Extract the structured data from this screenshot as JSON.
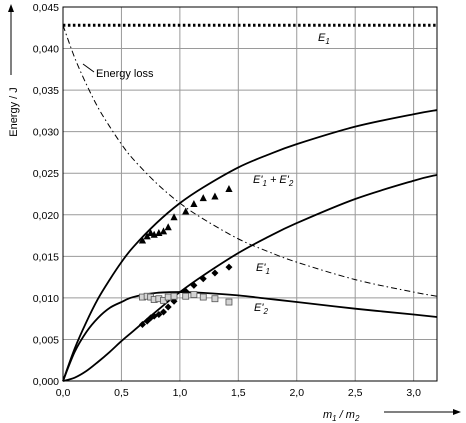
{
  "chart_data": {
    "type": "line",
    "xlabel_parts": {
      "m": "m",
      "sub1": "1",
      "slash": " / ",
      "sub2": "2"
    },
    "ylabel": "Energy / J",
    "xlim": [
      0,
      3.2
    ],
    "ylim": [
      0,
      0.045
    ],
    "grid": true,
    "x_ticks": [
      "0,0",
      "0,5",
      "1,0",
      "1,5",
      "2,0",
      "2,5",
      "3,0"
    ],
    "x_tick_values": [
      0,
      0.5,
      1,
      1.5,
      2,
      2.5,
      3
    ],
    "y_ticks": [
      "0,000",
      "0,005",
      "0,010",
      "0,015",
      "0,020",
      "0,025",
      "0,030",
      "0,035",
      "0,040",
      "0,045"
    ],
    "y_tick_values": [
      0,
      0.005,
      0.01,
      0.015,
      0.02,
      0.025,
      0.03,
      0.035,
      0.04,
      0.045
    ],
    "series": [
      {
        "name": "E1",
        "label_main": "E",
        "label_sub": "1",
        "style": "dotted",
        "x": [
          0,
          3.2
        ],
        "y": [
          0.0428,
          0.0428
        ]
      },
      {
        "name": "Energy loss",
        "label_main": "Energy loss",
        "style": "dash-dot",
        "x": [
          0,
          0.1,
          0.2,
          0.3,
          0.4,
          0.5,
          0.6,
          0.8,
          1.0,
          1.2,
          1.5,
          1.75,
          2.0,
          2.5,
          3.0,
          3.2
        ],
        "y": [
          0.0428,
          0.0389,
          0.0357,
          0.0329,
          0.0306,
          0.0285,
          0.0267,
          0.0238,
          0.0214,
          0.0195,
          0.0171,
          0.0156,
          0.0143,
          0.0122,
          0.0107,
          0.0102
        ]
      },
      {
        "name": "E'1 + E'2",
        "label_main": "E'",
        "label_sub": "1",
        "label_mid": " + E'",
        "label_sub2": "2",
        "style": "solid",
        "x": [
          0,
          0.1,
          0.2,
          0.3,
          0.4,
          0.5,
          0.6,
          0.8,
          1.0,
          1.2,
          1.5,
          1.75,
          2.0,
          2.5,
          3.0,
          3.2
        ],
        "y": [
          0,
          0.0039,
          0.0071,
          0.0099,
          0.0122,
          0.0143,
          0.0161,
          0.019,
          0.0214,
          0.0233,
          0.0257,
          0.0272,
          0.0285,
          0.0306,
          0.0321,
          0.0326
        ]
      },
      {
        "name": "E'1",
        "label_main": "E'",
        "label_sub": "1",
        "style": "solid",
        "x": [
          0,
          0.1,
          0.2,
          0.3,
          0.4,
          0.5,
          0.6,
          0.8,
          1.0,
          1.2,
          1.5,
          1.75,
          2.0,
          2.5,
          3.0,
          3.2
        ],
        "y": [
          0,
          0.0004,
          0.0012,
          0.0023,
          0.0035,
          0.0048,
          0.006,
          0.0084,
          0.0107,
          0.0127,
          0.0154,
          0.0173,
          0.019,
          0.0219,
          0.0241,
          0.0248
        ]
      },
      {
        "name": "E'2",
        "label_main": "E'",
        "label_sub": "2",
        "style": "solid",
        "x": [
          0,
          0.1,
          0.2,
          0.3,
          0.4,
          0.5,
          0.6,
          0.8,
          1.0,
          1.2,
          1.5,
          1.75,
          2.0,
          2.5,
          3.0,
          3.2
        ],
        "y": [
          0,
          0.0035,
          0.0059,
          0.0076,
          0.0088,
          0.0095,
          0.0101,
          0.0106,
          0.0107,
          0.0106,
          0.0103,
          0.0099,
          0.0095,
          0.0087,
          0.008,
          0.0077
        ]
      }
    ],
    "measurements": [
      {
        "name": "E'1 + E'2 measured",
        "marker": "triangle",
        "x": [
          0.68,
          0.72,
          0.75,
          0.78,
          0.82,
          0.86,
          0.9,
          0.95,
          1.05,
          1.12,
          1.2,
          1.3,
          1.42
        ],
        "y": [
          0.0169,
          0.0174,
          0.0178,
          0.0176,
          0.0178,
          0.018,
          0.0185,
          0.0197,
          0.0204,
          0.0213,
          0.022,
          0.0222,
          0.0231
        ]
      },
      {
        "name": "E'1 measured",
        "marker": "diamond",
        "x": [
          0.68,
          0.72,
          0.75,
          0.78,
          0.82,
          0.86,
          0.9,
          0.95,
          1.05,
          1.12,
          1.2,
          1.3,
          1.42
        ],
        "y": [
          0.0068,
          0.0072,
          0.0076,
          0.0078,
          0.008,
          0.0083,
          0.0089,
          0.0096,
          0.0108,
          0.0115,
          0.0123,
          0.013,
          0.0137
        ]
      },
      {
        "name": "E'2 measured",
        "marker": "square",
        "x": [
          0.68,
          0.72,
          0.75,
          0.78,
          0.82,
          0.86,
          0.9,
          0.95,
          1.05,
          1.12,
          1.2,
          1.3,
          1.42
        ],
        "y": [
          0.0101,
          0.0102,
          0.0101,
          0.0098,
          0.0099,
          0.0097,
          0.0101,
          0.0102,
          0.0102,
          0.0104,
          0.0101,
          0.0099,
          0.0095
        ]
      }
    ]
  }
}
